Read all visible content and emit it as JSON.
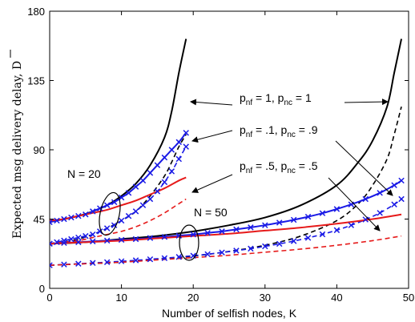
{
  "chart_data": {
    "type": "line",
    "xlabel": "Number of selfish nodes, K",
    "ylabel": "Expected msg delivery delay, D",
    "xlim": [
      0,
      50
    ],
    "ylim": [
      0,
      180
    ],
    "xticks": [
      "0",
      "10",
      "20",
      "30",
      "40",
      "50"
    ],
    "yticks": [
      "0",
      "45",
      "90",
      "135",
      "180"
    ],
    "grid": false,
    "annotations": {
      "n20": "N = 20",
      "n50": "N = 50",
      "p1": {
        "a": "p",
        "a_sub": "nf",
        "b": " = 1, p",
        "b_sub": "nc",
        "c": " = 1"
      },
      "p2": {
        "a": "p",
        "a_sub": "nf",
        "b": " = .1, p",
        "b_sub": "nc",
        "c": " = .9"
      },
      "p3": {
        "a": "p",
        "a_sub": "nf",
        "b": " = .5, p",
        "b_sub": "nc",
        "c": " = .5"
      }
    },
    "colors": {
      "black": "#000000",
      "blue": "#1a1ae6",
      "red": "#e61a1a"
    },
    "series": [
      {
        "group": "N20",
        "color": "black",
        "style": "solid",
        "marker": false,
        "x": [
          0,
          2,
          4,
          6,
          8,
          10,
          12,
          14,
          16,
          17,
          18,
          19
        ],
        "y": [
          44,
          45,
          47,
          50,
          54,
          60,
          68,
          80,
          98,
          115,
          140,
          162
        ]
      },
      {
        "group": "N20",
        "color": "black",
        "style": "dashed",
        "marker": false,
        "x": [
          0,
          2,
          4,
          6,
          8,
          10,
          12,
          14,
          16,
          17,
          18,
          19
        ],
        "y": [
          29,
          30,
          32,
          35,
          39,
          44,
          50,
          60,
          73,
          82,
          92,
          100
        ]
      },
      {
        "group": "N20",
        "color": "blue",
        "style": "solid",
        "marker": true,
        "x": [
          0,
          1,
          2,
          3,
          4,
          5,
          6,
          7,
          8,
          9,
          10,
          11,
          12,
          13,
          14,
          15,
          16,
          17,
          18,
          19
        ],
        "y": [
          43,
          44,
          45,
          46,
          47,
          48,
          50,
          52,
          54,
          56,
          59,
          62,
          66,
          70,
          75,
          80,
          85,
          90,
          95,
          101
        ]
      },
      {
        "group": "N20",
        "color": "blue",
        "style": "dashed",
        "marker": true,
        "x": [
          0,
          1,
          2,
          3,
          4,
          5,
          6,
          7,
          8,
          9,
          10,
          11,
          12,
          13,
          14,
          15,
          16,
          17,
          18,
          19
        ],
        "y": [
          29,
          30,
          31,
          32,
          33,
          34,
          35,
          37,
          39,
          41,
          44,
          47,
          50,
          54,
          58,
          63,
          69,
          76,
          84,
          92
        ]
      },
      {
        "group": "N20",
        "color": "red",
        "style": "solid",
        "marker": false,
        "x": [
          0,
          2,
          4,
          6,
          8,
          10,
          12,
          14,
          16,
          18,
          19
        ],
        "y": [
          44,
          45,
          47,
          49,
          51,
          54,
          57,
          61,
          65,
          70,
          72
        ]
      },
      {
        "group": "N20",
        "color": "red",
        "style": "dashed",
        "marker": false,
        "x": [
          0,
          2,
          4,
          6,
          8,
          10,
          12,
          14,
          16,
          18,
          19
        ],
        "y": [
          29,
          30,
          31,
          33,
          35,
          37,
          40,
          44,
          49,
          55,
          58
        ]
      },
      {
        "group": "N50",
        "color": "black",
        "style": "solid",
        "marker": false,
        "x": [
          0,
          5,
          10,
          15,
          20,
          25,
          30,
          35,
          40,
          43,
          45,
          47,
          48,
          49
        ],
        "y": [
          29,
          30,
          32,
          34,
          37,
          41,
          46,
          54,
          67,
          82,
          96,
          118,
          140,
          162
        ]
      },
      {
        "group": "N50",
        "color": "black",
        "style": "dashed",
        "marker": false,
        "x": [
          0,
          5,
          10,
          15,
          20,
          25,
          30,
          35,
          40,
          43,
          45,
          47,
          48,
          49
        ],
        "y": [
          15,
          16,
          17,
          19,
          21,
          24,
          28,
          34,
          44,
          55,
          67,
          84,
          100,
          118
        ]
      },
      {
        "group": "N50",
        "color": "blue",
        "style": "solid",
        "marker": true,
        "x": [
          0,
          2,
          4,
          6,
          8,
          10,
          12,
          14,
          16,
          18,
          20,
          22,
          24,
          26,
          28,
          30,
          32,
          34,
          36,
          38,
          40,
          42,
          44,
          46,
          48,
          49
        ],
        "y": [
          29,
          29.5,
          30,
          30.5,
          31,
          31.5,
          32,
          32.7,
          33.4,
          34.2,
          35,
          36,
          37,
          38.3,
          39.6,
          41,
          42.7,
          44.5,
          46.5,
          48.8,
          51.5,
          54.5,
          58,
          62,
          67,
          70
        ]
      },
      {
        "group": "N50",
        "color": "blue",
        "style": "dashed",
        "marker": true,
        "x": [
          0,
          2,
          4,
          6,
          8,
          10,
          12,
          14,
          16,
          18,
          20,
          22,
          24,
          26,
          28,
          30,
          32,
          34,
          36,
          38,
          40,
          42,
          44,
          46,
          48,
          49
        ],
        "y": [
          15,
          15.5,
          16,
          16.5,
          17,
          17.6,
          18.2,
          18.9,
          19.6,
          20.4,
          21.2,
          22.2,
          23.3,
          24.5,
          25.8,
          27.3,
          28.9,
          30.7,
          32.8,
          35.1,
          37.8,
          41,
          44.7,
          49,
          54.5,
          58
        ]
      },
      {
        "group": "N50",
        "color": "red",
        "style": "solid",
        "marker": false,
        "x": [
          0,
          5,
          10,
          15,
          20,
          25,
          30,
          35,
          40,
          45,
          49
        ],
        "y": [
          29,
          30,
          31,
          32.5,
          34,
          35.5,
          37.5,
          39.5,
          42,
          45,
          48
        ]
      },
      {
        "group": "N50",
        "color": "red",
        "style": "dashed",
        "marker": false,
        "x": [
          0,
          5,
          10,
          15,
          20,
          25,
          30,
          35,
          40,
          45,
          49
        ],
        "y": [
          15,
          16,
          17,
          18.5,
          20,
          21.5,
          23.5,
          25.5,
          28,
          31,
          34
        ]
      }
    ]
  }
}
